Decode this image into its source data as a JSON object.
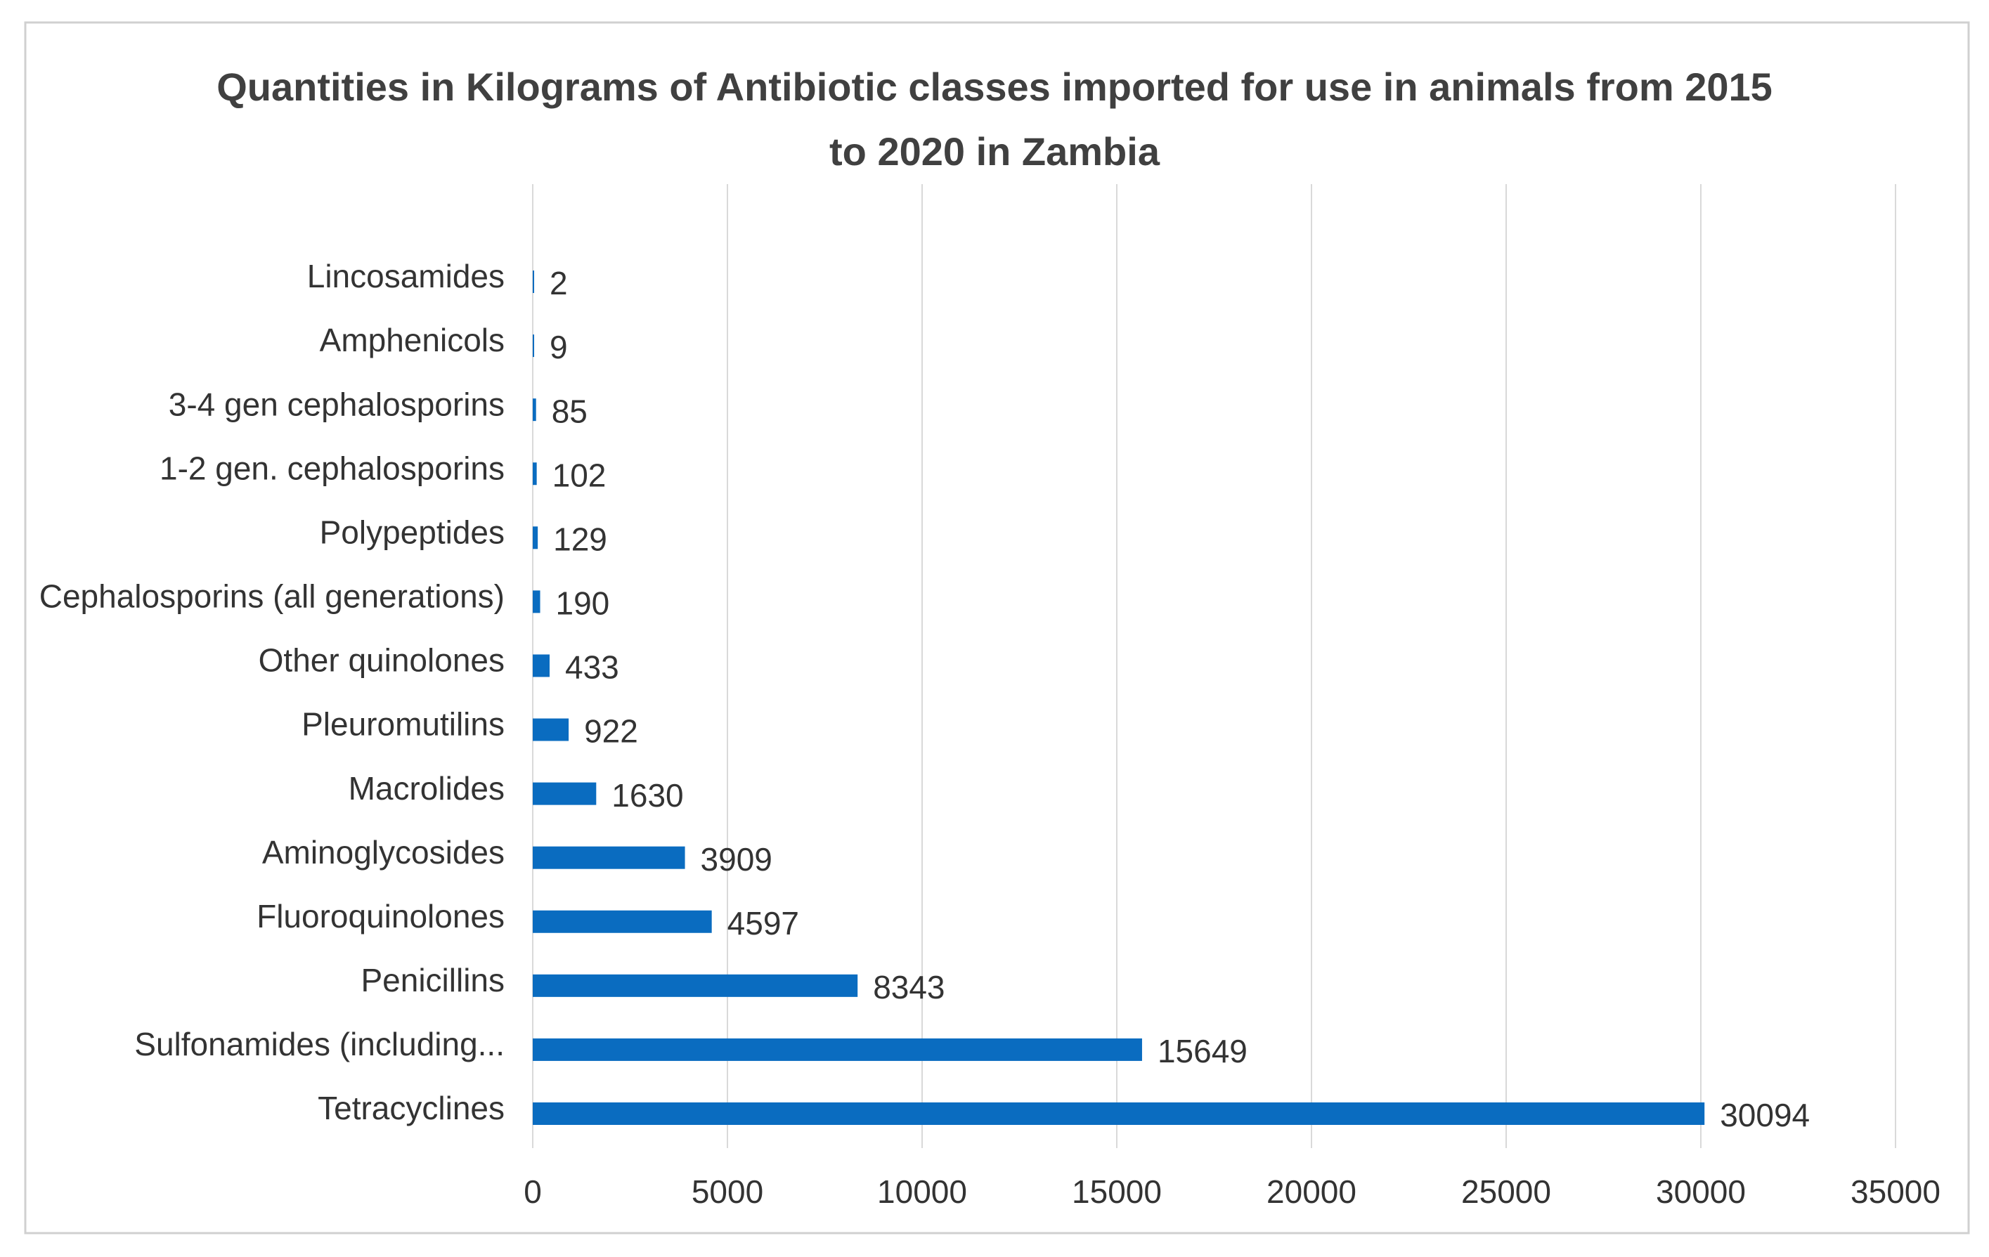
{
  "chart_data": {
    "type": "bar",
    "orientation": "horizontal",
    "title": "Quantities in Kilograms of Antibiotic classes imported for use in animals from 2015 to 2020 in Zambia",
    "categories": [
      "Lincosamides",
      "Amphenicols",
      "3-4 gen cephalosporins",
      "1-2 gen. cephalosporins",
      "Polypeptides",
      "Cephalosporins (all generations)",
      "Other quinolones",
      "Pleuromutilins",
      "Macrolides",
      "Aminoglycosides",
      "Fluoroquinolones",
      "Penicillins",
      "Sulfonamides (including...",
      "Tetracyclines"
    ],
    "values": [
      2,
      9,
      85,
      102,
      129,
      190,
      433,
      922,
      1630,
      3909,
      4597,
      8343,
      15649,
      30094
    ],
    "color": "#0a6cc0",
    "xlim": [
      0,
      35000
    ],
    "xticks": [
      0,
      5000,
      10000,
      15000,
      20000,
      25000,
      30000,
      35000
    ],
    "grid": true
  }
}
